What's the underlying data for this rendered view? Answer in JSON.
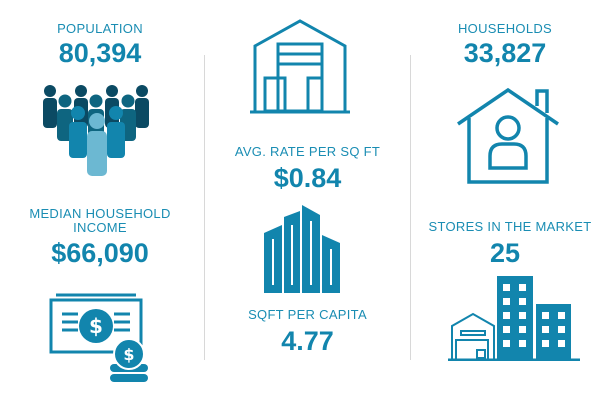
{
  "stats": {
    "population": {
      "label": "POPULATION",
      "value": "80,394",
      "icon": "people-group-icon"
    },
    "income": {
      "label": "MEDIAN HOUSEHOLD INCOME",
      "value": "$66,090",
      "icon": "money-icon"
    },
    "rate": {
      "label": "AVG. RATE PER SQ FT",
      "value": "$0.84",
      "icon": "storage-unit-icon"
    },
    "sqft": {
      "label": "SQFT PER CAPITA",
      "value": "4.77",
      "icon": "city-buildings-icon"
    },
    "households": {
      "label": "HOUSEHOLDS",
      "value": "33,827",
      "icon": "house-person-icon"
    },
    "stores": {
      "label": "STORES IN THE MARKET",
      "value": "25",
      "icon": "storage-facility-icon"
    }
  },
  "colors": {
    "accent": "#1285ad",
    "dark": "#0b4a63",
    "light": "#6cb8d2"
  }
}
